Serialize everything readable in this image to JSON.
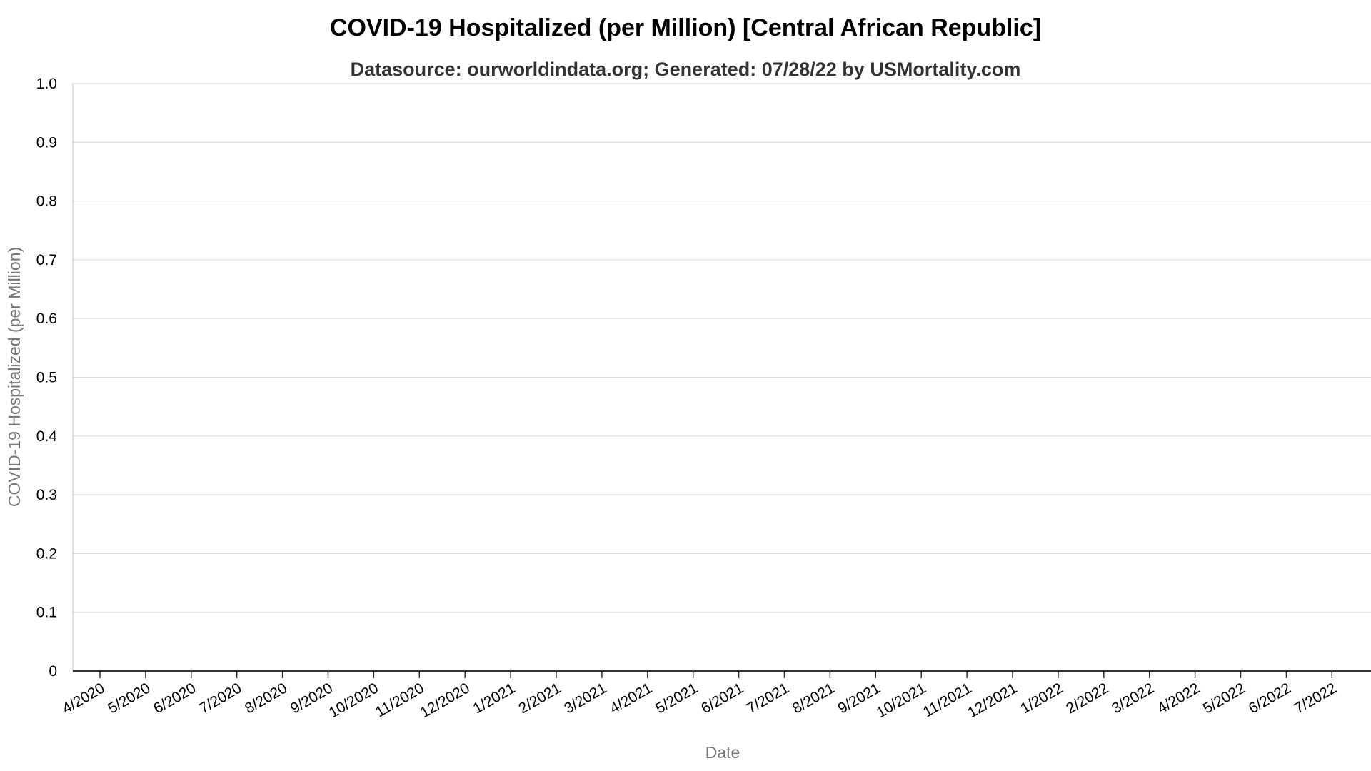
{
  "chart_data": {
    "type": "line",
    "title": "COVID-19 Hospitalized (per Million) [Central African Republic]",
    "subtitle": "Datasource: ourworldindata.org; Generated: 07/28/22 by USMortality.com",
    "xlabel": "Date",
    "ylabel": "COVID-19 Hospitalized (per Million)",
    "ylim": [
      0,
      1
    ],
    "yticks": [
      "0",
      "0.1",
      "0.2",
      "0.3",
      "0.4",
      "0.5",
      "0.6",
      "0.7",
      "0.8",
      "0.9",
      "1.0"
    ],
    "xticks": [
      "4/2020",
      "5/2020",
      "6/2020",
      "7/2020",
      "8/2020",
      "9/2020",
      "10/2020",
      "11/2020",
      "12/2020",
      "1/2021",
      "2/2021",
      "3/2021",
      "4/2021",
      "5/2021",
      "6/2021",
      "7/2021",
      "8/2021",
      "9/2021",
      "10/2021",
      "11/2021",
      "12/2021",
      "1/2022",
      "2/2022",
      "3/2022",
      "4/2022",
      "5/2022",
      "6/2022",
      "7/2022"
    ],
    "grid": true,
    "series": []
  },
  "colors": {
    "grid": "#dedede",
    "axis": "#333333",
    "axis_label": "#777777"
  }
}
